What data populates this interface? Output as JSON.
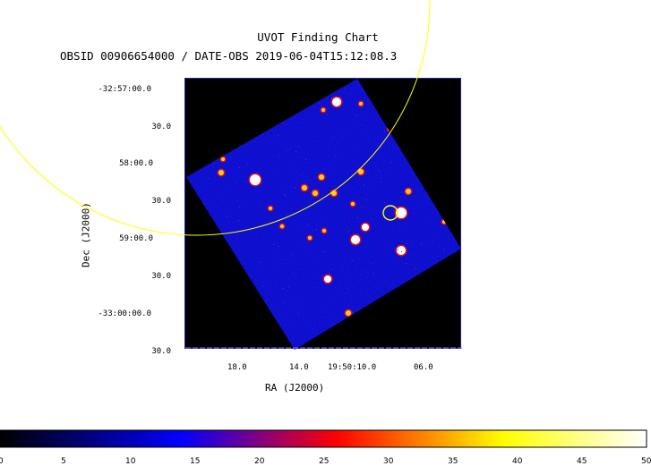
{
  "title": "UVOT Finding Chart",
  "subtitle": "OBSID 00906654000 / DATE-OBS 2019-06-04T15:12:08.3",
  "axes": {
    "xlabel": "RA (J2000)",
    "ylabel": "Dec (J2000)",
    "dec_ticks": [
      "-32:57:00.0",
      "30.0",
      "58:00.0",
      "30.0",
      "59:00.0",
      "30.0",
      "-33:00:00.0",
      "30.0"
    ],
    "ra_ticks": [
      "18.0",
      "14.0",
      "19:50:10.0",
      "06.0"
    ]
  },
  "colorbar": {
    "colors": [
      "#000000",
      "#0000ff",
      "#ff0000",
      "#ffff00",
      "#ffffff"
    ],
    "labels": [
      "0",
      "5",
      "10",
      "15",
      "20",
      "25",
      "30",
      "35",
      "40",
      "45",
      "50"
    ]
  },
  "image": {
    "background": "#0a0ad0",
    "overlays": [
      "large-yellow-circle",
      "small-yellow-circle"
    ]
  }
}
